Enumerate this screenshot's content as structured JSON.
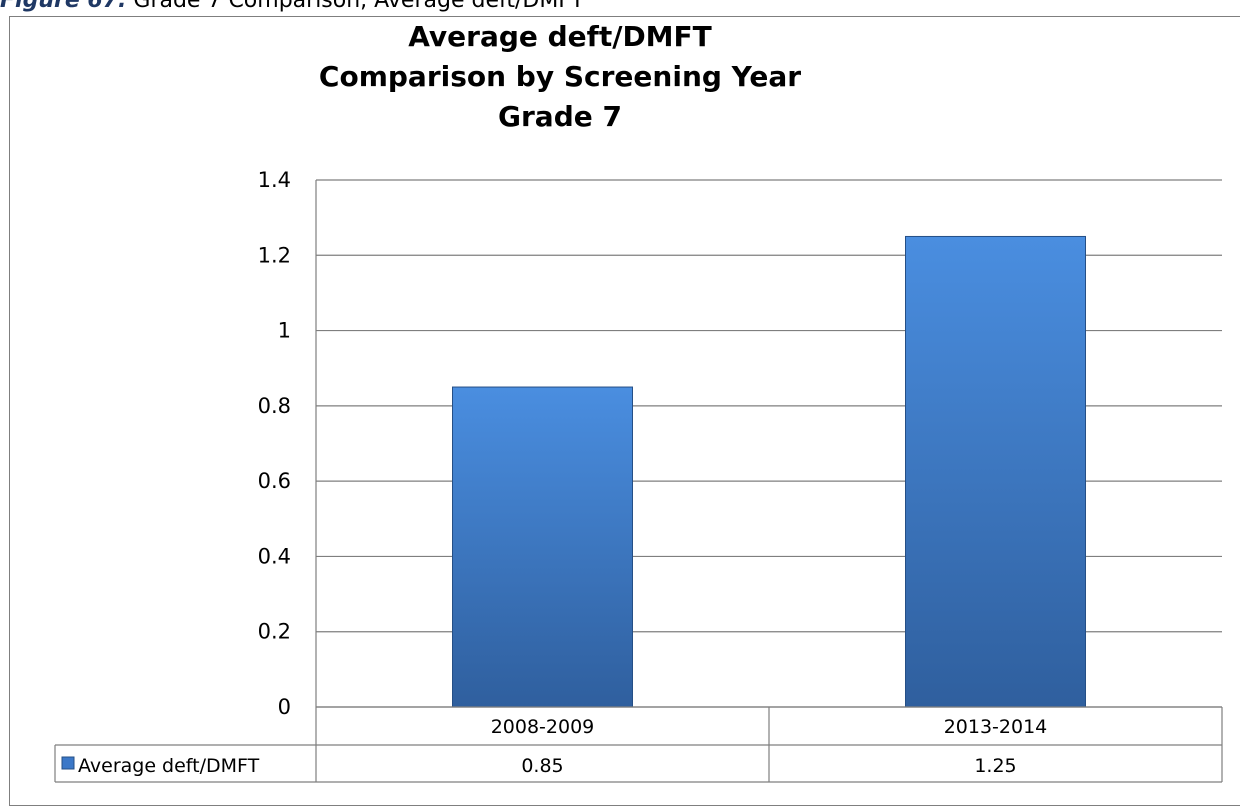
{
  "caption": {
    "label": "Figure 67.",
    "text": "Grade 7 Comparison, Average deft/DMFT"
  },
  "chart_data": {
    "type": "bar",
    "title_lines": [
      "Average deft/DMFT",
      "Comparison by Screening Year",
      "Grade 7"
    ],
    "categories": [
      "2008-2009",
      "2013-2014"
    ],
    "series": [
      {
        "name": "Average deft/DMFT",
        "values": [
          0.85,
          1.25
        ],
        "value_labels": [
          "0.85",
          "1.25"
        ],
        "color": "#3b78c8"
      }
    ],
    "ylim": [
      0,
      1.4
    ],
    "yticks": [
      0,
      0.2,
      0.4,
      0.6,
      0.8,
      1.0,
      1.2,
      1.4
    ],
    "ytick_labels": [
      "0",
      "0.2",
      "0.4",
      "0.6",
      "0.8",
      "1",
      "1.2",
      "1.4"
    ],
    "grid": true,
    "legend": "data-table"
  },
  "colors": {
    "bar_top": "#4a8ee0",
    "bar_bottom": "#2f5f9e",
    "bar_edge": "#254f86",
    "gridline": "#7f7f7f",
    "legend_key": "#3b78c8"
  }
}
